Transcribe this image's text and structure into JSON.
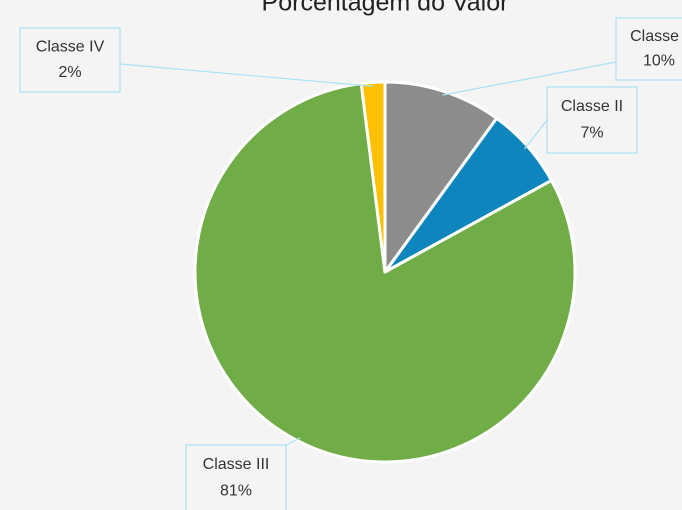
{
  "chart_data": {
    "type": "pie",
    "title": "Porcentagem do Valor",
    "categories": [
      "Classe I",
      "Classe II",
      "Classe III",
      "Classe IV"
    ],
    "values": [
      10,
      7,
      81,
      2
    ],
    "value_labels": [
      "10%",
      "7%",
      "81%",
      "2%"
    ],
    "colors": [
      "#8c8c8c",
      "#0e86bd",
      "#70ad47",
      "#ffc000"
    ]
  }
}
